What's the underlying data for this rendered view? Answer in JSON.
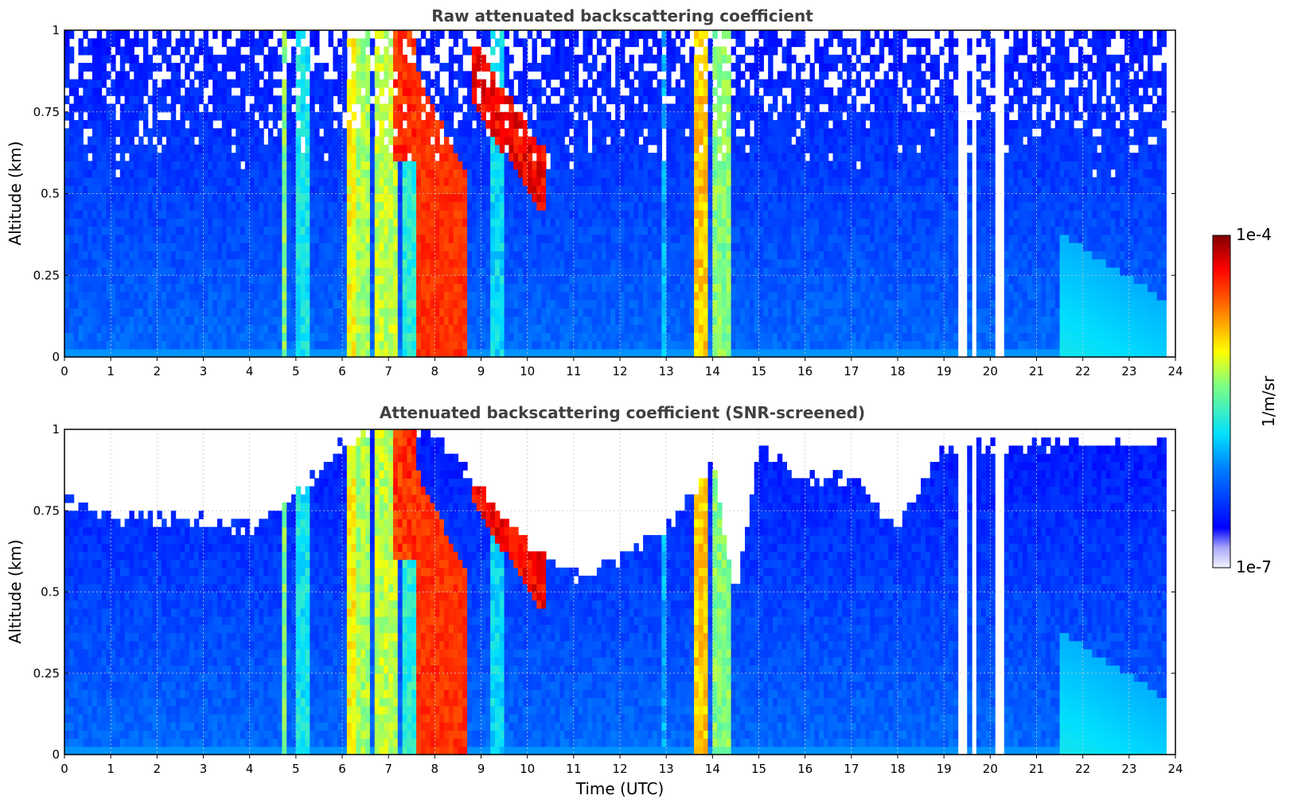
{
  "chart_data": [
    {
      "type": "heatmap",
      "title": "Raw attenuated backscattering coefficient",
      "ylabel": "Altitude (km)",
      "xlabel": "",
      "xlim": [
        0,
        24
      ],
      "ylim": [
        0,
        1
      ],
      "x_ticks": [
        "0",
        "1",
        "2",
        "3",
        "4",
        "5",
        "6",
        "7",
        "8",
        "9",
        "10",
        "11",
        "12",
        "13",
        "14",
        "15",
        "16",
        "17",
        "18",
        "19",
        "20",
        "21",
        "22",
        "23",
        "24"
      ],
      "y_ticks": [
        "0",
        "0.25",
        "0.5",
        "0.75",
        "1"
      ],
      "grid": true,
      "features": [
        {
          "name": "cloud",
          "x_range": [
            7.6,
            8.7
          ],
          "y_range": [
            0,
            0.6
          ],
          "intensity": "high"
        },
        {
          "name": "layer",
          "x_range": [
            8.8,
            10.3
          ],
          "y_range": [
            0.55,
            0.9
          ],
          "intensity": "high"
        },
        {
          "name": "precipitation",
          "x_range": [
            6.1,
            7.2
          ],
          "y_range": [
            0,
            1
          ],
          "intensity": "medium"
        },
        {
          "name": "precipitation",
          "x_range": [
            13.6,
            14.4
          ],
          "y_range": [
            0,
            1
          ],
          "intensity": "medium"
        },
        {
          "name": "boundary_layer",
          "x_range": [
            21.5,
            23.8
          ],
          "y_range": [
            0,
            0.35
          ],
          "intensity": "low"
        }
      ],
      "missing_time_ranges": [
        [
          19.35,
          19.45
        ],
        [
          19.6,
          19.7
        ],
        [
          20.1,
          20.3
        ],
        [
          23.8,
          24
        ]
      ]
    },
    {
      "type": "heatmap",
      "title": "Attenuated backscattering coefficient (SNR-screened)",
      "ylabel": "Altitude (km)",
      "xlabel": "Time (UTC)",
      "xlim": [
        0,
        24
      ],
      "ylim": [
        0,
        1
      ],
      "x_ticks": [
        "0",
        "1",
        "2",
        "3",
        "4",
        "5",
        "6",
        "7",
        "8",
        "9",
        "10",
        "11",
        "12",
        "13",
        "14",
        "15",
        "16",
        "17",
        "18",
        "19",
        "20",
        "21",
        "22",
        "23",
        "24"
      ],
      "y_ticks": [
        "0",
        "0.25",
        "0.5",
        "0.75",
        "1"
      ],
      "grid": true,
      "screened_top_profile": [
        [
          0,
          0.78
        ],
        [
          0.5,
          0.75
        ],
        [
          1,
          0.74
        ],
        [
          2,
          0.72
        ],
        [
          3,
          0.72
        ],
        [
          4,
          0.7
        ],
        [
          5,
          0.8
        ],
        [
          6,
          0.95
        ],
        [
          7,
          1.0
        ],
        [
          8,
          1.0
        ],
        [
          9,
          0.8
        ],
        [
          10,
          0.65
        ],
        [
          11,
          0.55
        ],
        [
          12,
          0.6
        ],
        [
          13,
          0.7
        ],
        [
          14,
          0.9
        ],
        [
          14.5,
          0.45
        ],
        [
          15,
          0.95
        ],
        [
          16,
          0.85
        ],
        [
          17,
          0.85
        ],
        [
          18,
          0.7
        ],
        [
          19,
          0.95
        ],
        [
          20,
          0.95
        ],
        [
          21,
          0.95
        ],
        [
          22,
          0.95
        ],
        [
          23,
          0.95
        ],
        [
          23.8,
          0.95
        ]
      ],
      "missing_time_ranges": [
        [
          19.35,
          19.45
        ],
        [
          19.6,
          19.7
        ],
        [
          20.1,
          20.3
        ],
        [
          23.8,
          24
        ]
      ]
    }
  ],
  "colorbar": {
    "max_label": "1e-4",
    "min_label": "1e-7",
    "unit_label": "1/m/sr",
    "colormap": "jet"
  }
}
